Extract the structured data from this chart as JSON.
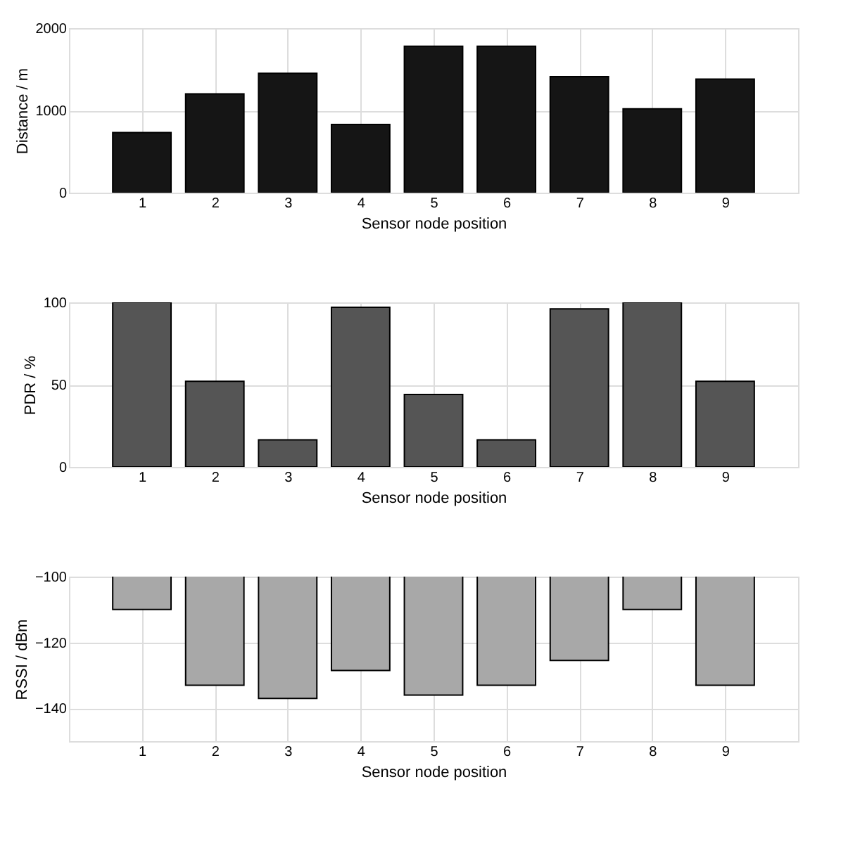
{
  "chart_data": [
    {
      "type": "bar",
      "xlabel": "Sensor node position",
      "ylabel": "Distance / m",
      "x": [
        1,
        2,
        3,
        4,
        5,
        6,
        7,
        8,
        9
      ],
      "values": [
        730,
        1200,
        1450,
        830,
        1780,
        1780,
        1410,
        1020,
        1380
      ],
      "color": "#151515",
      "xlim": [
        0,
        10
      ],
      "xticks": [
        1,
        2,
        3,
        4,
        5,
        6,
        7,
        8,
        9
      ],
      "ylim": [
        0,
        2000
      ],
      "yticks": [
        0,
        1000,
        2000
      ],
      "grid": true
    },
    {
      "type": "bar",
      "xlabel": "Sensor node position",
      "ylabel": "PDR / %",
      "x": [
        1,
        2,
        3,
        4,
        5,
        6,
        7,
        8,
        9
      ],
      "values": [
        100,
        52,
        16.5,
        97,
        44,
        16.5,
        96,
        100,
        52
      ],
      "color": "#555555",
      "xlim": [
        0,
        10
      ],
      "xticks": [
        1,
        2,
        3,
        4,
        5,
        6,
        7,
        8,
        9
      ],
      "ylim": [
        0,
        100
      ],
      "yticks": [
        0,
        50,
        100
      ],
      "grid": true
    },
    {
      "type": "bar",
      "xlabel": "Sensor node position",
      "ylabel": "RSSI / dBm",
      "x": [
        1,
        2,
        3,
        4,
        5,
        6,
        7,
        8,
        9
      ],
      "values": [
        -110,
        -133,
        -137,
        -128.5,
        -136,
        -133,
        -125.5,
        -110,
        -133
      ],
      "color": "#a8a8a8",
      "xlim": [
        0,
        10
      ],
      "xticks": [
        1,
        2,
        3,
        4,
        5,
        6,
        7,
        8,
        9
      ],
      "ylim": [
        -150,
        -100
      ],
      "yticks": [
        -100,
        -120,
        -140
      ],
      "grid": true
    }
  ]
}
